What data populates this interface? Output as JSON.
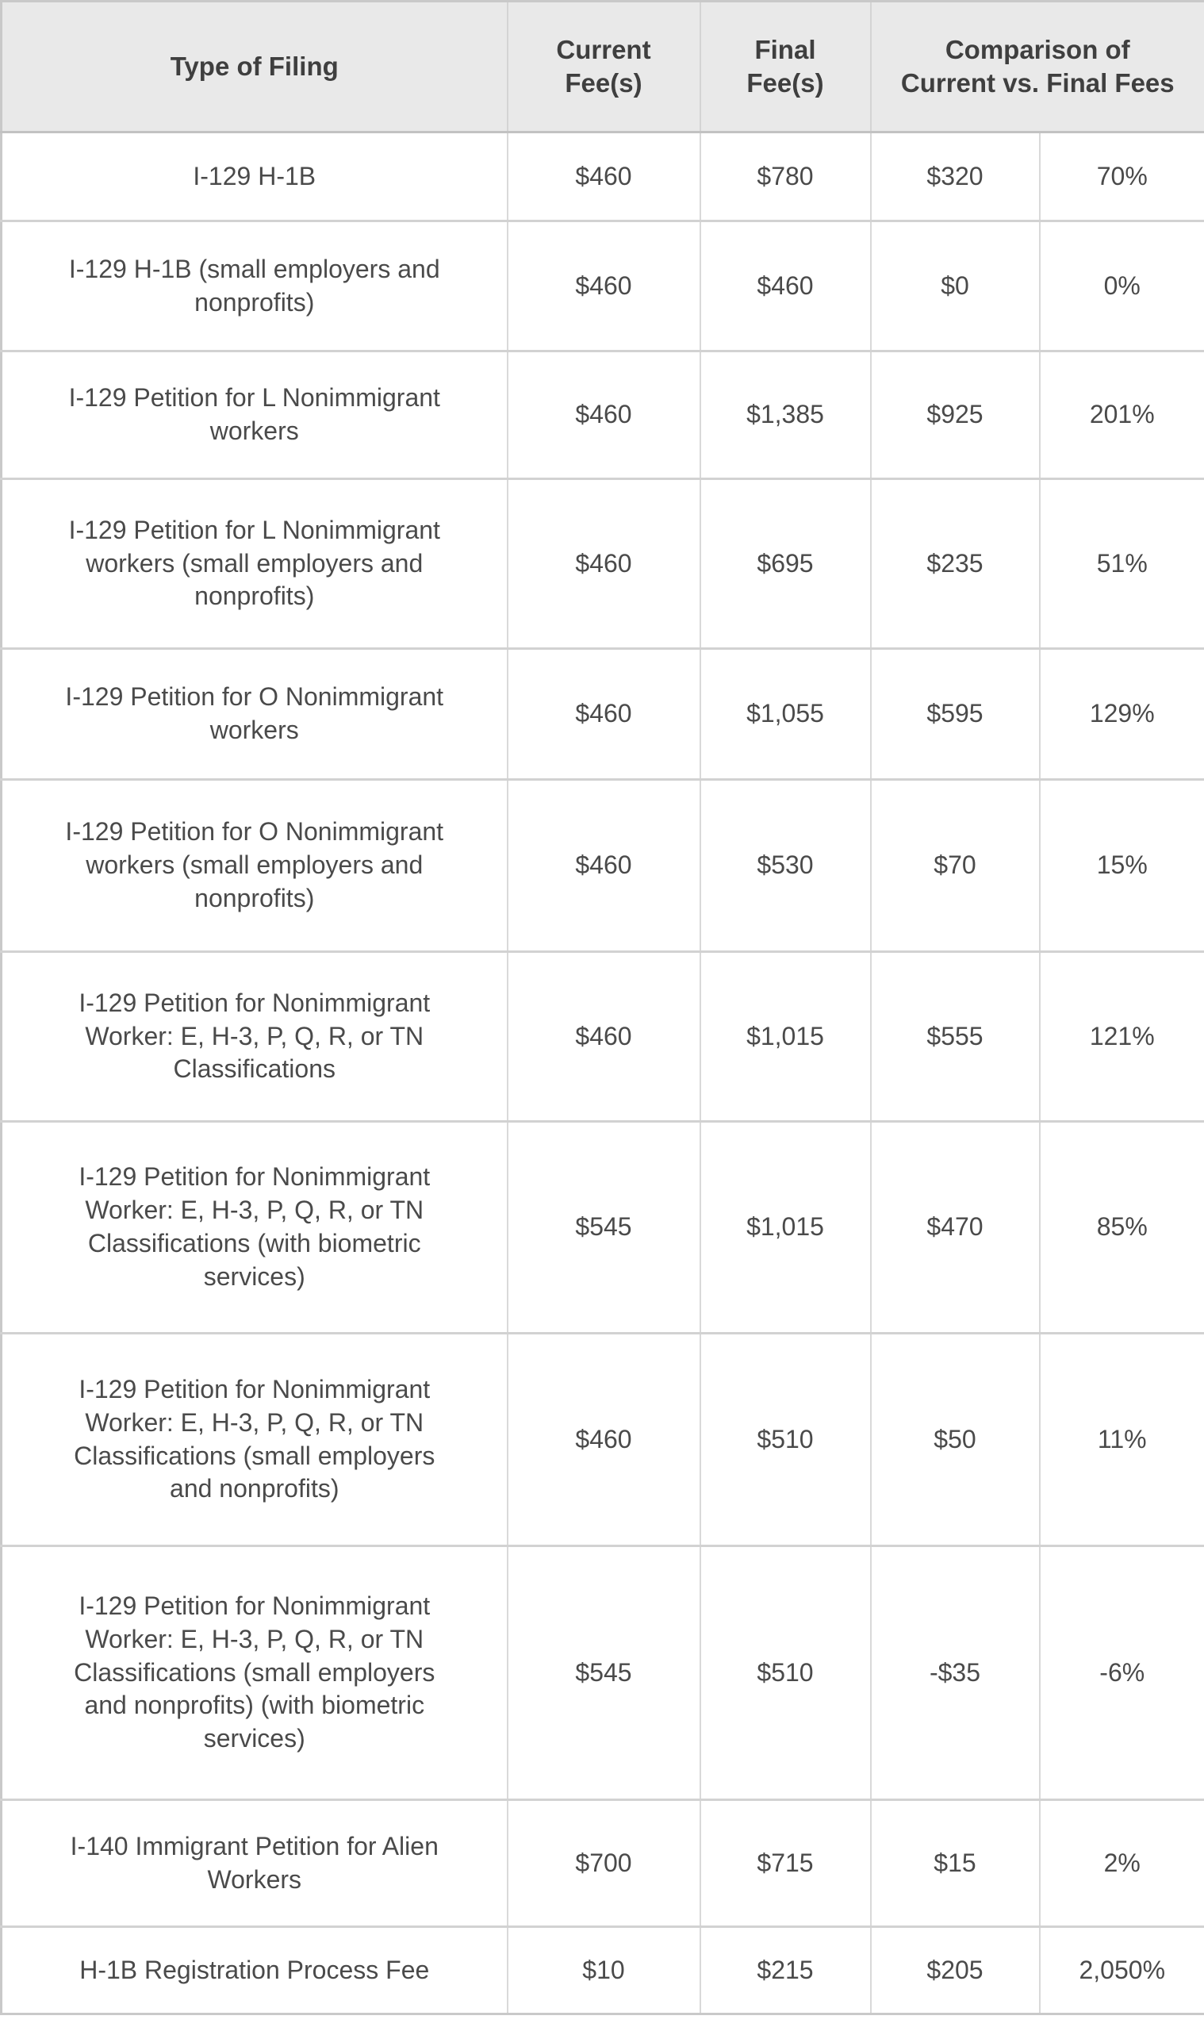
{
  "table": {
    "columns": {
      "filing": "Type of Filing",
      "current": "Current Fee(s)",
      "final": "Final Fee(s)",
      "comparison_line1": "Comparison of",
      "comparison_line2": "Current vs. Final Fees"
    },
    "rows": [
      {
        "filing": "I-129 H-1B",
        "current": "$460",
        "final": "$780",
        "diff": "$320",
        "pct": "70%"
      },
      {
        "filing": "I-129 H-1B (small employers and nonprofits)",
        "current": "$460",
        "final": "$460",
        "diff": "$0",
        "pct": "0%"
      },
      {
        "filing": "I-129 Petition for L Nonimmigrant workers",
        "current": "$460",
        "final": "$1,385",
        "diff": "$925",
        "pct": "201%"
      },
      {
        "filing": "I-129 Petition for L Nonimmigrant workers (small employers and nonprofits)",
        "current": "$460",
        "final": "$695",
        "diff": "$235",
        "pct": "51%"
      },
      {
        "filing": "I-129 Petition for O Nonimmigrant workers",
        "current": "$460",
        "final": "$1,055",
        "diff": "$595",
        "pct": "129%"
      },
      {
        "filing": "I-129 Petition for O Nonimmigrant workers (small employers and nonprofits)",
        "current": "$460",
        "final": "$530",
        "diff": "$70",
        "pct": "15%"
      },
      {
        "filing": "I-129 Petition for Nonimmigrant Worker: E, H-3, P, Q, R, or TN Classifications",
        "current": "$460",
        "final": "$1,015",
        "diff": "$555",
        "pct": "121%"
      },
      {
        "filing": "I-129 Petition for Nonimmigrant Worker: E, H-3, P, Q, R, or TN Classifications (with biometric services)",
        "current": "$545",
        "final": "$1,015",
        "diff": "$470",
        "pct": "85%"
      },
      {
        "filing": "I-129 Petition for Nonimmigrant Worker: E, H-3, P, Q, R, or TN Classifications (small employers and nonprofits)",
        "current": "$460",
        "final": "$510",
        "diff": "$50",
        "pct": "11%"
      },
      {
        "filing": "I-129 Petition for Nonimmigrant Worker: E, H-3, P, Q, R, or TN Classifications (small employers and nonprofits) (with biometric services)",
        "current": "$545",
        "final": "$510",
        "diff": "-$35",
        "pct": "-6%"
      },
      {
        "filing": "I-140 Immigrant Petition for Alien Workers",
        "current": "$700",
        "final": "$715",
        "diff": "$15",
        "pct": "2%"
      },
      {
        "filing": "H-1B Registration Process Fee",
        "current": "$10",
        "final": "$215",
        "diff": "$205",
        "pct": "2,050%"
      }
    ]
  },
  "colors": {
    "header_background": "#e9e9e9",
    "header_text": "#3f3f3f",
    "body_text": "#4a4a4a",
    "row_divider": "#d2d2d2",
    "column_divider": "#d9d9d9",
    "outer_border": "#c9c9c9"
  }
}
